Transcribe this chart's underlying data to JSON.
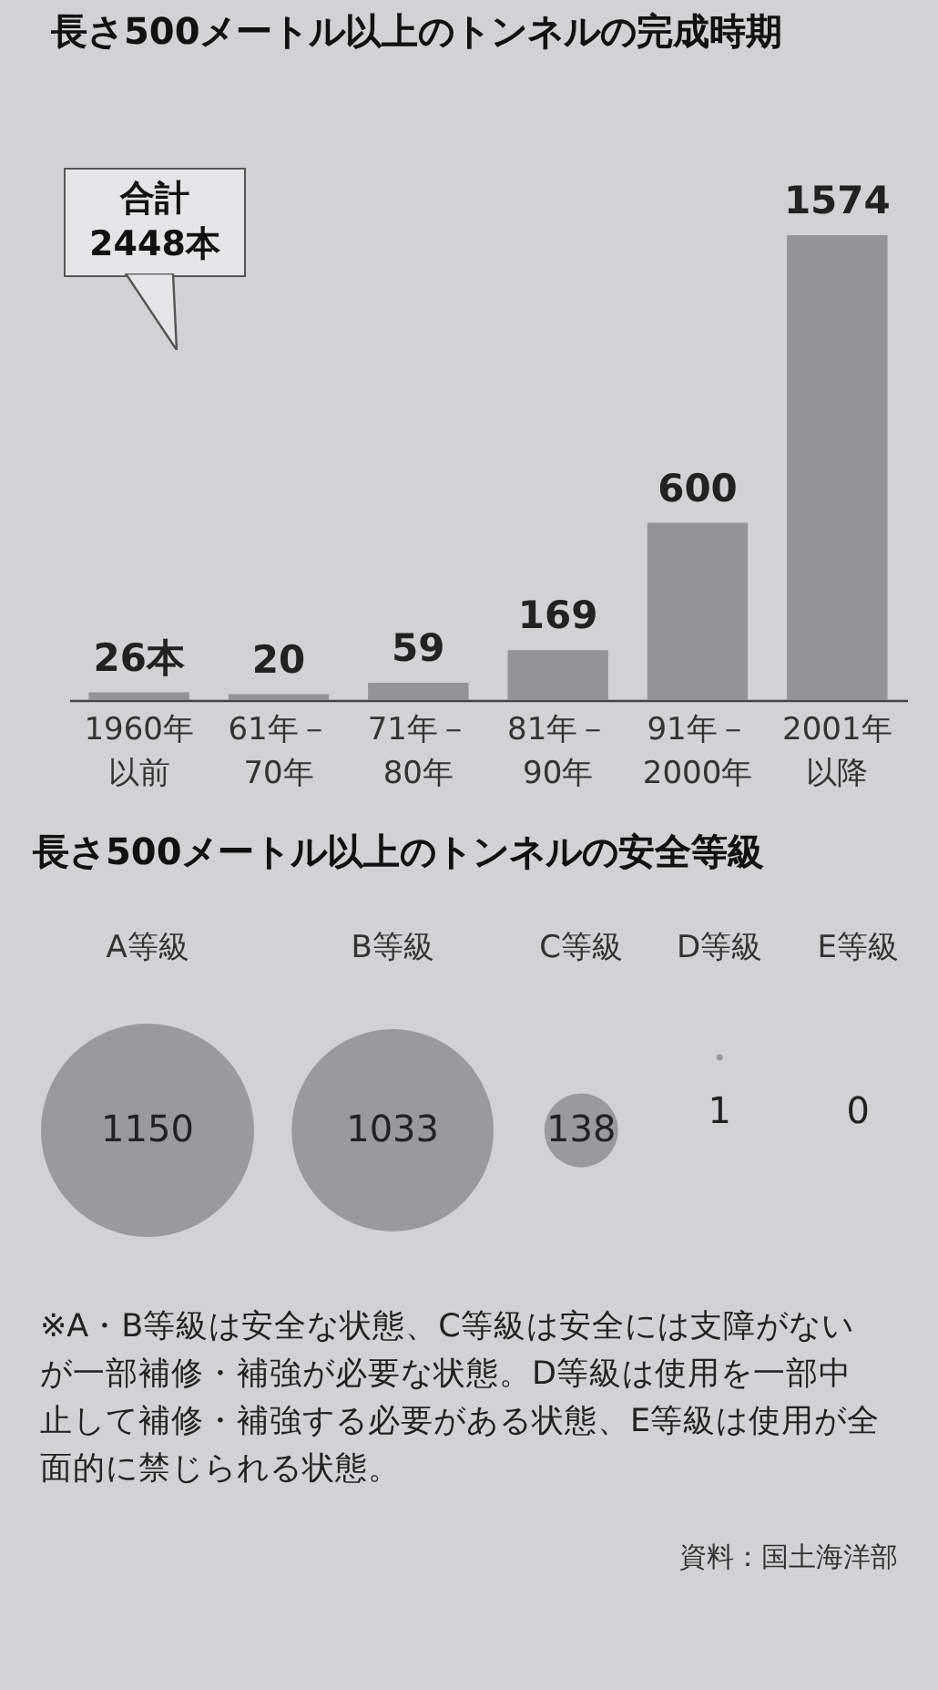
{
  "chart_data": [
    {
      "type": "bar",
      "title": "長さ500メートル以上のトンネルの完成時期",
      "categories": [
        "1960年以前",
        "61年－70年",
        "71年－80年",
        "81年－90年",
        "91年－2000年",
        "2001年以降"
      ],
      "values": [
        26,
        20,
        59,
        169,
        600,
        1574
      ],
      "value_labels": [
        "26本",
        "20",
        "59",
        "169",
        "600",
        "1574"
      ],
      "color": "#939498",
      "annotations": [
        "合計2448本"
      ]
    },
    {
      "type": "other",
      "title": "長さ500メートル以上のトンネルの安全等級",
      "categories": [
        "A等級",
        "B等級",
        "C等級",
        "D等級",
        "E等級"
      ],
      "values": [
        1150,
        1033,
        138,
        1,
        0
      ],
      "data_labels": true,
      "color": "#999a9e",
      "annotations": [
        "※A・B等級は安全な状態、C等級は安全には支障がないが一部補修・補強が必要な状態。D等級は使用を一部中止して補修・補強する必要がある状態、E等級は使用が全面的に禁じられる状態。",
        "資料：国土海洋部"
      ]
    }
  ]
}
